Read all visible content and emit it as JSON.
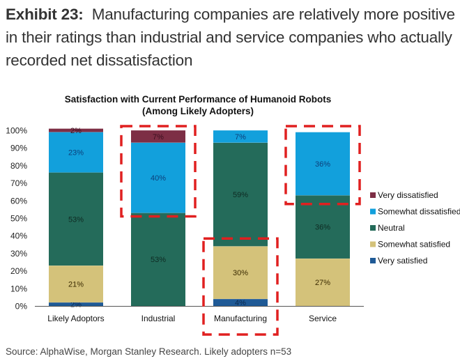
{
  "exhibit": {
    "label": "Exhibit 23:",
    "headline": "Manufacturing companies are relatively more positive in their ratings than industrial and service companies who actually recorded net dissatisfaction"
  },
  "source": "Source: AlphaWise, Morgan Stanley Research. Likely adopters n=53",
  "chart_data": {
    "type": "bar",
    "stacked": true,
    "title": "Satisfaction with Current Performance of Humanoid Robots",
    "subtitle": "(Among Likely Adopters)",
    "xlabel": "",
    "ylabel": "",
    "ylim": [
      0,
      100
    ],
    "y_ticks": [
      "0%",
      "10%",
      "20%",
      "30%",
      "40%",
      "50%",
      "60%",
      "70%",
      "80%",
      "90%",
      "100%"
    ],
    "grid": false,
    "legend_position": "right",
    "categories": [
      "Likely Adoptors",
      "Industrial",
      "Manufacturing",
      "Service"
    ],
    "series": [
      {
        "name": "Very satisfied",
        "color": "#1f5a96",
        "values": [
          2,
          0,
          4,
          0
        ],
        "labels": [
          "2%",
          "",
          "4%",
          ""
        ]
      },
      {
        "name": "Somewhat satisfied",
        "color": "#d4c27a",
        "values": [
          21,
          0,
          30,
          27
        ],
        "labels": [
          "21%",
          "",
          "30%",
          "27%"
        ]
      },
      {
        "name": "Neutral",
        "color": "#246b5a",
        "values": [
          53,
          53,
          59,
          36
        ],
        "labels": [
          "53%",
          "53%",
          "59%",
          "36%"
        ]
      },
      {
        "name": "Somewhat dissatisfied",
        "color": "#12a0dc",
        "values": [
          23,
          40,
          7,
          36
        ],
        "labels": [
          "23%",
          "40%",
          "7%",
          "36%"
        ]
      },
      {
        "name": "Very dissatisfied",
        "color": "#7d2e45",
        "values": [
          2,
          7,
          0,
          0
        ],
        "labels": [
          "2%",
          "7%",
          "",
          ""
        ]
      }
    ],
    "legend_order": [
      "Very dissatisfied",
      "Somewhat dissatisfied",
      "Neutral",
      "Somewhat satisfied",
      "Very satisfied"
    ],
    "annotations": [
      {
        "type": "dashed-box",
        "category": "Industrial",
        "from": 53,
        "to": 100,
        "color": "#e02020"
      },
      {
        "type": "dashed-box",
        "category": "Manufacturing",
        "from": 0,
        "to": 36,
        "color": "#e02020"
      },
      {
        "type": "dashed-box",
        "category": "Service",
        "from": 60,
        "to": 100,
        "color": "#e02020"
      }
    ]
  }
}
